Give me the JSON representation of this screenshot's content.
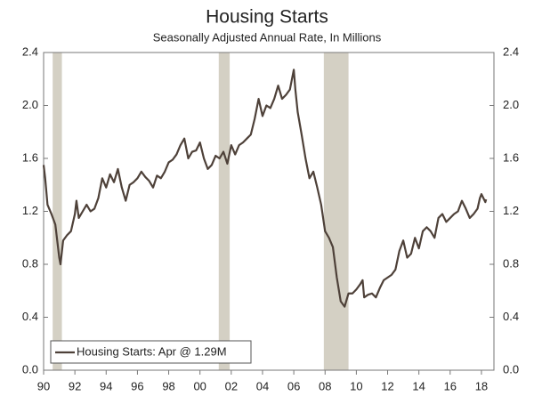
{
  "chart_data": {
    "type": "line",
    "title": "Housing Starts",
    "subtitle": "Seasonally Adjusted Annual Rate, In Millions",
    "x": [
      1990.0,
      1990.1,
      1990.25,
      1990.5,
      1990.75,
      1991.0,
      1991.08,
      1991.25,
      1991.5,
      1991.75,
      1992.0,
      1992.1,
      1992.25,
      1992.5,
      1992.75,
      1993.0,
      1993.25,
      1993.5,
      1993.75,
      1994.0,
      1994.25,
      1994.5,
      1994.75,
      1995.0,
      1995.25,
      1995.5,
      1995.75,
      1996.0,
      1996.25,
      1996.5,
      1996.75,
      1997.0,
      1997.25,
      1997.5,
      1997.75,
      1998.0,
      1998.25,
      1998.5,
      1998.75,
      1999.0,
      1999.25,
      1999.5,
      1999.75,
      2000.0,
      2000.25,
      2000.5,
      2000.75,
      2001.0,
      2001.25,
      2001.5,
      2001.75,
      2002.0,
      2002.25,
      2002.5,
      2002.75,
      2003.0,
      2003.25,
      2003.5,
      2003.75,
      2004.0,
      2004.25,
      2004.5,
      2004.75,
      2005.0,
      2005.25,
      2005.5,
      2005.75,
      2006.0,
      2006.1,
      2006.25,
      2006.5,
      2006.75,
      2007.0,
      2007.25,
      2007.5,
      2007.75,
      2008.0,
      2008.25,
      2008.5,
      2008.75,
      2009.0,
      2009.25,
      2009.5,
      2009.75,
      2010.0,
      2010.25,
      2010.4,
      2010.5,
      2010.75,
      2011.0,
      2011.25,
      2011.5,
      2011.75,
      2012.0,
      2012.25,
      2012.5,
      2012.75,
      2013.0,
      2013.25,
      2013.5,
      2013.75,
      2014.0,
      2014.25,
      2014.5,
      2014.75,
      2015.0,
      2015.25,
      2015.5,
      2015.75,
      2016.0,
      2016.25,
      2016.5,
      2016.75,
      2017.0,
      2017.25,
      2017.5,
      2017.75,
      2017.9,
      2018.0,
      2018.25,
      2018.3
    ],
    "series": [
      {
        "name": "Housing Starts: Apr @ 1.29M",
        "color": "#4e4139",
        "values": [
          1.55,
          1.45,
          1.25,
          1.18,
          1.1,
          0.85,
          0.8,
          0.98,
          1.02,
          1.05,
          1.18,
          1.28,
          1.15,
          1.2,
          1.25,
          1.2,
          1.22,
          1.3,
          1.45,
          1.38,
          1.48,
          1.42,
          1.52,
          1.38,
          1.28,
          1.4,
          1.42,
          1.45,
          1.5,
          1.46,
          1.43,
          1.38,
          1.47,
          1.45,
          1.5,
          1.57,
          1.59,
          1.63,
          1.7,
          1.75,
          1.6,
          1.65,
          1.66,
          1.72,
          1.6,
          1.52,
          1.55,
          1.62,
          1.6,
          1.65,
          1.56,
          1.7,
          1.63,
          1.7,
          1.72,
          1.75,
          1.78,
          1.9,
          2.05,
          1.92,
          2.0,
          1.98,
          2.05,
          2.15,
          2.05,
          2.08,
          2.12,
          2.27,
          2.12,
          1.95,
          1.78,
          1.6,
          1.45,
          1.5,
          1.38,
          1.25,
          1.05,
          1.0,
          0.93,
          0.7,
          0.52,
          0.48,
          0.58,
          0.58,
          0.61,
          0.65,
          0.68,
          0.55,
          0.57,
          0.58,
          0.55,
          0.62,
          0.68,
          0.7,
          0.72,
          0.76,
          0.9,
          0.98,
          0.85,
          0.88,
          1.0,
          0.92,
          1.05,
          1.08,
          1.05,
          1.0,
          1.15,
          1.18,
          1.12,
          1.15,
          1.18,
          1.2,
          1.28,
          1.22,
          1.15,
          1.18,
          1.22,
          1.3,
          1.33,
          1.27,
          1.29
        ]
      }
    ],
    "recessions": [
      [
        1990.58,
        1991.17
      ],
      [
        2001.2,
        2001.9
      ],
      [
        2007.92,
        2009.5
      ]
    ],
    "recession_color": "#d4d0c4",
    "xlim": [
      1990,
      2018.8
    ],
    "xticks": [
      {
        "value": 1990,
        "label": "90"
      },
      {
        "value": 1992,
        "label": "92"
      },
      {
        "value": 1994,
        "label": "94"
      },
      {
        "value": 1996,
        "label": "96"
      },
      {
        "value": 1998,
        "label": "98"
      },
      {
        "value": 2000,
        "label": "00"
      },
      {
        "value": 2002,
        "label": "02"
      },
      {
        "value": 2004,
        "label": "04"
      },
      {
        "value": 2006,
        "label": "06"
      },
      {
        "value": 2008,
        "label": "08"
      },
      {
        "value": 2010,
        "label": "10"
      },
      {
        "value": 2012,
        "label": "12"
      },
      {
        "value": 2014,
        "label": "14"
      },
      {
        "value": 2016,
        "label": "16"
      },
      {
        "value": 2018,
        "label": "18"
      }
    ],
    "ylim": [
      0,
      2.4
    ],
    "yticks": [
      {
        "value": 0,
        "label": "0.0"
      },
      0.4,
      0.8,
      1.2,
      1.6,
      {
        "value": 2,
        "label": "2.0"
      },
      2.4
    ],
    "y2lim": [
      0,
      2.4
    ],
    "y2ticks": [
      {
        "value": 0,
        "label": "0.0"
      },
      0.4,
      0.8,
      1.2,
      1.6,
      {
        "value": 2,
        "label": "2.0"
      },
      2.4
    ],
    "legend": "lower left"
  }
}
